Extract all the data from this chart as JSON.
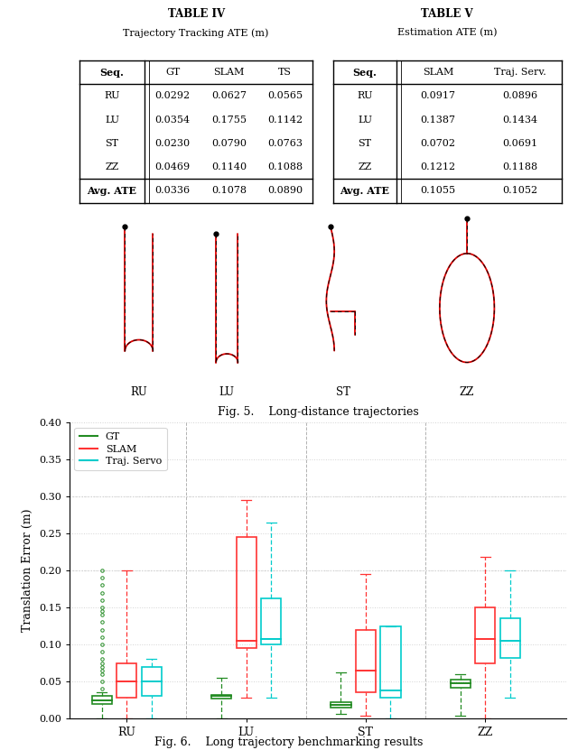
{
  "table4_title": "TABLE IV",
  "table4_subtitle": "Trajectory Tracking ATE (m)",
  "table4_header": [
    "Seq.",
    "GT",
    "SLAM",
    "TS"
  ],
  "table4_rows": [
    [
      "RU",
      "0.0292",
      "0.0627",
      "0.0565"
    ],
    [
      "LU",
      "0.0354",
      "0.1755",
      "0.1142"
    ],
    [
      "ST",
      "0.0230",
      "0.0790",
      "0.0763"
    ],
    [
      "ZZ",
      "0.0469",
      "0.1140",
      "0.1088"
    ]
  ],
  "table4_avg": [
    "Avg. ATE",
    "0.0336",
    "0.1078",
    "0.0890"
  ],
  "table5_title": "TABLE V",
  "table5_subtitle": "Estimation ATE (m)",
  "table5_header": [
    "Seq.",
    "SLAM",
    "Traj. Serv."
  ],
  "table5_rows": [
    [
      "RU",
      "0.0917",
      "0.0896"
    ],
    [
      "LU",
      "0.1387",
      "0.1434"
    ],
    [
      "ST",
      "0.0702",
      "0.0691"
    ],
    [
      "ZZ",
      "0.1212",
      "0.1188"
    ]
  ],
  "table5_avg": [
    "Avg. ATE",
    "0.1055",
    "0.1052"
  ],
  "fig5_caption": "Fig. 5.    Long-distance trajectories",
  "fig6_caption": "Fig. 6.    Long trajectory benchmarking results",
  "box_gt_color": "#228B22",
  "box_slam_color": "#FF3333",
  "box_ts_color": "#00CCCC",
  "sequences": [
    "RU",
    "LU",
    "ST",
    "ZZ"
  ],
  "ylim": [
    0.0,
    0.4
  ],
  "yticks": [
    0.0,
    0.05,
    0.1,
    0.15,
    0.2,
    0.25,
    0.3,
    0.35,
    0.4
  ],
  "ylabel": "Translation Error (m)",
  "bg_color": "#FFFFFF"
}
